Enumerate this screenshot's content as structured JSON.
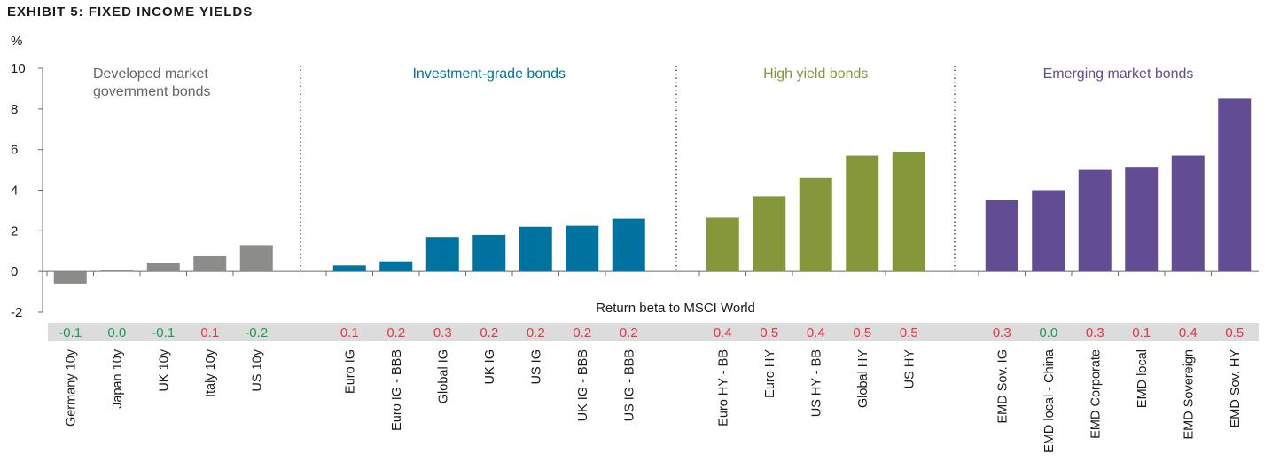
{
  "title": "EXHIBIT 5: FIXED INCOME YIELDS",
  "colors": {
    "dev": "#8c8c8a",
    "ig": "#0073a1",
    "hy": "#84973b",
    "em": "#624d92",
    "pos": "#e23744",
    "neg": "#1e9a56",
    "beta_band": "#dcdcdc"
  },
  "chart_data": {
    "type": "bar",
    "title": "EXHIBIT 5: FIXED INCOME YIELDS",
    "ylabel": "%",
    "ylim": [
      -2,
      10
    ],
    "yticks": [
      -2,
      0,
      2,
      4,
      6,
      8,
      10
    ],
    "beta_label": "Return beta to MSCI World",
    "groups": [
      {
        "name": "Developed market government bonds",
        "label_lines": [
          "Developed market",
          "government bonds"
        ],
        "color_key": "dev",
        "categories": [
          "Germany 10y",
          "Japan 10y",
          "UK 10y",
          "Italy 10y",
          "US 10y"
        ],
        "values": [
          -0.6,
          0.05,
          0.4,
          0.75,
          1.3
        ],
        "beta": [
          "-0.1",
          "0.0",
          "-0.1",
          "0.1",
          "-0.2"
        ]
      },
      {
        "name": "Investment-grade bonds",
        "label_lines": [
          "Investment-grade bonds"
        ],
        "color_key": "ig",
        "categories": [
          "Euro IG",
          "Euro IG - BBB",
          "Global IG",
          "UK IG",
          "US IG",
          "UK IG - BBB",
          "US IG - BBB"
        ],
        "values": [
          0.3,
          0.5,
          1.7,
          1.8,
          2.2,
          2.25,
          2.6
        ],
        "beta": [
          "0.1",
          "0.2",
          "0.3",
          "0.2",
          "0.2",
          "0.2",
          "0.2"
        ]
      },
      {
        "name": "High yield bonds",
        "label_lines": [
          "High yield bonds"
        ],
        "color_key": "hy",
        "categories": [
          "Euro HY - BB",
          "Euro HY",
          "US HY - BB",
          "Global HY",
          "US HY"
        ],
        "values": [
          2.65,
          3.7,
          4.6,
          5.7,
          5.9
        ],
        "beta": [
          "0.4",
          "0.5",
          "0.4",
          "0.5",
          "0.5"
        ]
      },
      {
        "name": "Emerging market bonds",
        "label_lines": [
          "Emerging market bonds"
        ],
        "color_key": "em",
        "categories": [
          "EMD Sov. IG",
          "EMD local - China",
          "EMD Corporate",
          "EMD local",
          "EMD Sovereign",
          "EMD Sov. HY"
        ],
        "values": [
          3.5,
          4.0,
          5.0,
          5.15,
          5.7,
          8.5
        ],
        "beta": [
          "0.3",
          "0.0",
          "0.3",
          "0.1",
          "0.4",
          "0.5"
        ]
      }
    ]
  }
}
